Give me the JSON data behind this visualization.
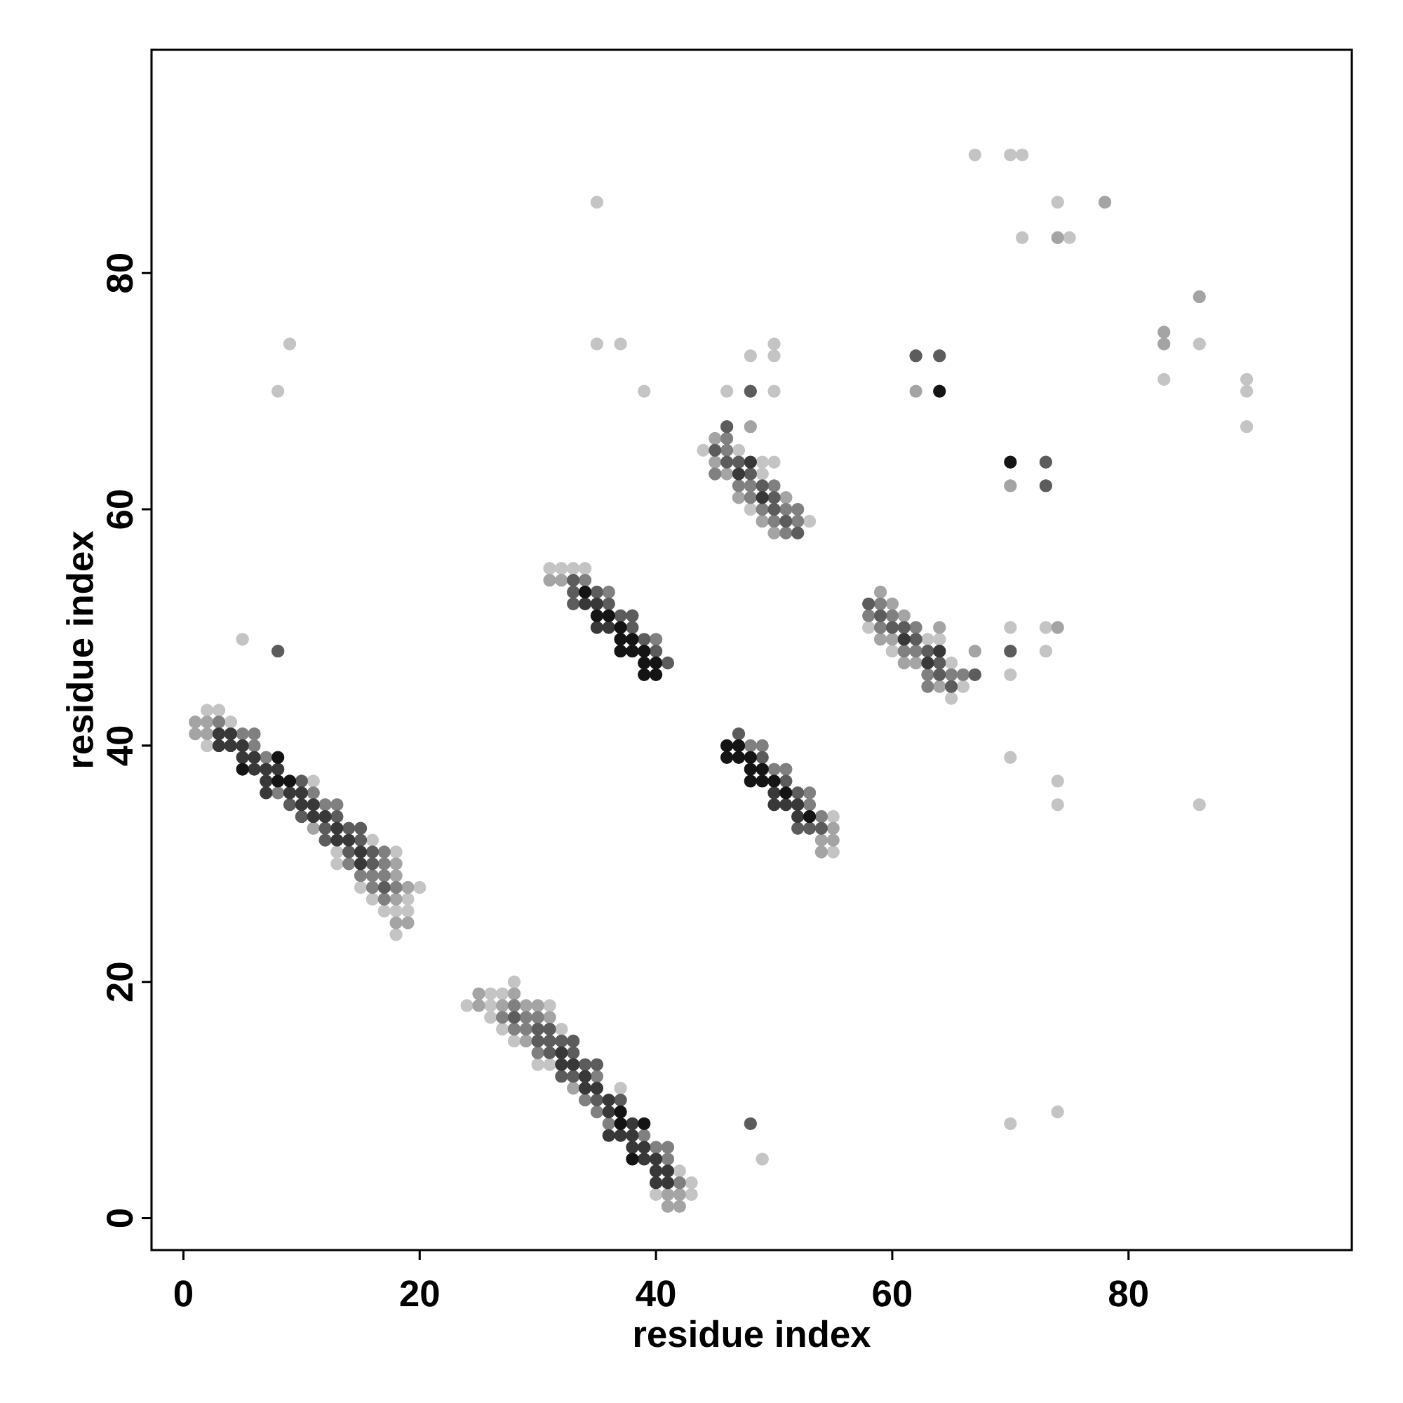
{
  "chart_data": {
    "type": "scatter",
    "xlabel": "residue index",
    "ylabel": "residue index",
    "xlim": [
      -2.7,
      98.9
    ],
    "ylim": [
      -2.7,
      98.9
    ],
    "xticks": [
      0,
      20,
      40,
      60,
      80
    ],
    "yticks": [
      0,
      20,
      40,
      60,
      80
    ],
    "marker": "circle",
    "grid": false,
    "series": [
      {
        "color": "#c4c4c4",
        "x": [
          2,
          3,
          4,
          2,
          11,
          16,
          13,
          18,
          13,
          15,
          20,
          16,
          19,
          17,
          18,
          19,
          18,
          28,
          26,
          27,
          24,
          26,
          31,
          26,
          27,
          32,
          28,
          30,
          31,
          37,
          42,
          43,
          40,
          43,
          31,
          32,
          33,
          34,
          55,
          55,
          44,
          47,
          49,
          50,
          49,
          48,
          53,
          58,
          63,
          64,
          60,
          65,
          66,
          65,
          67,
          70,
          71,
          35,
          74,
          71,
          75,
          86,
          83,
          90,
          90,
          90,
          9,
          8,
          35,
          37,
          39,
          48,
          50,
          50,
          46,
          50,
          5,
          70,
          73,
          73,
          70,
          70,
          74,
          74,
          86,
          49,
          70,
          74
        ],
        "values": [
          43,
          43,
          42,
          40,
          37,
          32,
          31,
          31,
          30,
          28,
          28,
          27,
          27,
          26,
          26,
          26,
          24,
          20,
          19,
          19,
          18,
          18,
          18,
          17,
          16,
          16,
          15,
          13,
          13,
          11,
          4,
          3,
          2,
          2,
          55,
          55,
          55,
          55,
          34,
          31,
          65,
          65,
          64,
          64,
          63,
          60,
          59,
          50,
          49,
          49,
          48,
          47,
          45,
          44,
          90,
          90,
          90,
          86,
          86,
          83,
          83,
          74,
          71,
          71,
          70,
          67,
          74,
          70,
          74,
          74,
          70,
          73,
          74,
          73,
          70,
          70,
          49,
          50,
          50,
          48,
          46,
          39,
          37,
          35,
          35,
          5,
          8,
          9
        ]
      },
      {
        "color": "#a4a4a4",
        "x": [
          1,
          2,
          1,
          2,
          11,
          18,
          18,
          19,
          18,
          18,
          19,
          25,
          28,
          25,
          27,
          29,
          30,
          31,
          29,
          33,
          41,
          42,
          41,
          42,
          31,
          32,
          55,
          54,
          55,
          54,
          48,
          45,
          45,
          46,
          47,
          49,
          50,
          51,
          59,
          60,
          61,
          64,
          59,
          60,
          67,
          61,
          62,
          64,
          78,
          74,
          86,
          83,
          83,
          62,
          70,
          74
        ],
        "values": [
          42,
          42,
          41,
          41,
          33,
          30,
          29,
          28,
          27,
          25,
          25,
          19,
          19,
          18,
          18,
          18,
          18,
          17,
          15,
          11,
          2,
          2,
          1,
          1,
          54,
          54,
          33,
          32,
          32,
          31,
          67,
          66,
          64,
          63,
          61,
          59,
          58,
          61,
          53,
          52,
          51,
          50,
          49,
          49,
          48,
          47,
          47,
          45,
          86,
          83,
          78,
          75,
          74,
          70,
          62,
          50
        ]
      },
      {
        "color": "#808080",
        "x": [
          5,
          6,
          6,
          7,
          8,
          11,
          12,
          13,
          17,
          17,
          14,
          15,
          16,
          17,
          16,
          18,
          17,
          3,
          28,
          27,
          29,
          30,
          28,
          29,
          30,
          35,
          34,
          35,
          36,
          39,
          40,
          41,
          41,
          42,
          34,
          36,
          40,
          48,
          49,
          50,
          51,
          53,
          53,
          54,
          46,
          46,
          45,
          47,
          48,
          50,
          48,
          49,
          51,
          52,
          50,
          52,
          51,
          59,
          58,
          60,
          59,
          62,
          61,
          62,
          63,
          65,
          66,
          63
        ],
        "values": [
          41,
          41,
          40,
          39,
          36,
          36,
          35,
          35,
          31,
          30,
          30,
          29,
          29,
          29,
          28,
          28,
          27,
          42,
          18,
          17,
          17,
          17,
          16,
          16,
          14,
          12,
          10,
          9,
          8,
          7,
          6,
          6,
          5,
          3,
          54,
          53,
          49,
          40,
          40,
          38,
          38,
          36,
          35,
          34,
          66,
          65,
          63,
          62,
          62,
          62,
          61,
          60,
          60,
          60,
          59,
          59,
          58,
          52,
          51,
          51,
          50,
          50,
          48,
          48,
          46,
          46,
          46,
          45
        ]
      },
      {
        "color": "#5c5c5c",
        "x": [
          10,
          9,
          10,
          13,
          12,
          14,
          15,
          12,
          15,
          14,
          16,
          16,
          17,
          28,
          30,
          31,
          30,
          31,
          32,
          33,
          31,
          33,
          34,
          35,
          32,
          33,
          35,
          37,
          33,
          33,
          35,
          33,
          36,
          37,
          38,
          38,
          39,
          40,
          41,
          47,
          49,
          51,
          52,
          52,
          53,
          54,
          46,
          45,
          46,
          47,
          48,
          49,
          50,
          50,
          51,
          52,
          58,
          59,
          60,
          61,
          62,
          63,
          64,
          64,
          67,
          65,
          48,
          62,
          64,
          73,
          73,
          8,
          70,
          48
        ],
        "values": [
          37,
          35,
          34,
          34,
          33,
          33,
          33,
          32,
          32,
          31,
          31,
          30,
          28,
          17,
          16,
          16,
          15,
          15,
          15,
          15,
          14,
          14,
          13,
          13,
          12,
          12,
          10,
          10,
          54,
          53,
          53,
          52,
          52,
          51,
          51,
          50,
          49,
          48,
          47,
          41,
          39,
          37,
          36,
          33,
          33,
          33,
          67,
          65,
          64,
          64,
          63,
          62,
          61,
          60,
          59,
          58,
          52,
          51,
          50,
          50,
          49,
          48,
          47,
          46,
          46,
          45,
          70,
          73,
          73,
          64,
          62,
          48,
          48,
          8
        ]
      },
      {
        "color": "#383838",
        "x": [
          3,
          4,
          3,
          4,
          5,
          5,
          6,
          6,
          7,
          8,
          7,
          7,
          9,
          10,
          10,
          11,
          11,
          12,
          13,
          13,
          14,
          15,
          15,
          32,
          32,
          33,
          34,
          34,
          35,
          36,
          36,
          38,
          36,
          37,
          38,
          38,
          39,
          39,
          40,
          40,
          41,
          40,
          41,
          34,
          35,
          35,
          36,
          50,
          50,
          51,
          52,
          52,
          48,
          47,
          49,
          61,
          64,
          63
        ],
        "values": [
          41,
          41,
          40,
          40,
          40,
          39,
          39,
          38,
          38,
          38,
          37,
          36,
          36,
          36,
          35,
          35,
          34,
          34,
          33,
          32,
          32,
          31,
          30,
          14,
          13,
          13,
          12,
          11,
          11,
          10,
          9,
          8,
          7,
          7,
          7,
          6,
          6,
          5,
          5,
          4,
          4,
          3,
          3,
          52,
          52,
          50,
          50,
          36,
          35,
          35,
          35,
          34,
          64,
          63,
          61,
          49,
          48,
          47
        ]
      },
      {
        "color": "#141414",
        "x": [
          8,
          5,
          8,
          9,
          37,
          37,
          39,
          38,
          34,
          35,
          36,
          37,
          37,
          38,
          37,
          38,
          39,
          39,
          40,
          39,
          40,
          46,
          47,
          46,
          47,
          48,
          48,
          49,
          48,
          49,
          50,
          51,
          53,
          64,
          70
        ],
        "values": [
          39,
          38,
          37,
          37,
          9,
          8,
          8,
          5,
          53,
          51,
          51,
          50,
          49,
          49,
          48,
          48,
          48,
          47,
          47,
          46,
          46,
          40,
          40,
          39,
          39,
          39,
          38,
          38,
          37,
          37,
          37,
          36,
          34,
          70,
          64
        ]
      }
    ]
  }
}
